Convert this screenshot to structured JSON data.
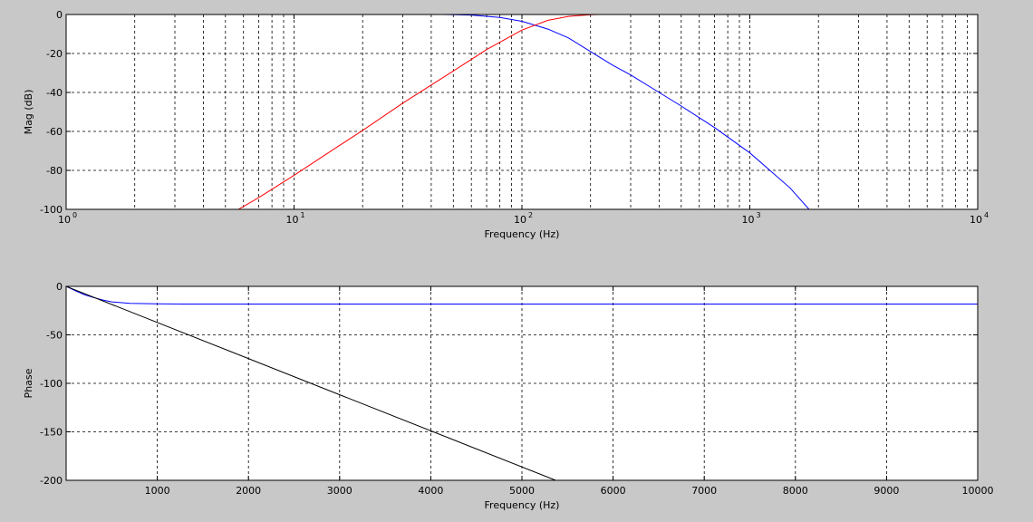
{
  "window": {
    "background": "#c8c8c8"
  },
  "chart_data": [
    {
      "type": "line",
      "xscale": "log",
      "xlim": [
        1,
        10000
      ],
      "ylim": [
        -100,
        0
      ],
      "xlabel": "Frequency (Hz)",
      "ylabel": "Mag (dB)",
      "grid": true,
      "x_ticks": [
        {
          "base": "10",
          "exp": "0",
          "value": 1
        },
        {
          "base": "10",
          "exp": "1",
          "value": 10
        },
        {
          "base": "10",
          "exp": "2",
          "value": 100
        },
        {
          "base": "10",
          "exp": "3",
          "value": 1000
        },
        {
          "base": "10",
          "exp": "4",
          "value": 10000
        }
      ],
      "y_ticks": [
        0,
        -20,
        -40,
        -60,
        -80,
        -100
      ],
      "series": [
        {
          "color": "#0000ff",
          "x": [
            45,
            60,
            80,
            100,
            130,
            160,
            200,
            250,
            300,
            400,
            500,
            700,
            1000,
            1500,
            1820
          ],
          "y": [
            0,
            -0.3,
            -1.5,
            -3.5,
            -7.5,
            -12,
            -19,
            -26,
            -31,
            -40,
            -47,
            -58,
            -71,
            -89,
            -100
          ]
        },
        {
          "color": "#ff0000",
          "x": [
            5.7,
            7,
            10,
            15,
            20,
            30,
            50,
            70,
            100,
            130,
            160,
            200,
            220
          ],
          "y": [
            -100,
            -94,
            -82.5,
            -69,
            -59.5,
            -45.5,
            -29,
            -18,
            -8,
            -3,
            -1,
            -0.1,
            0
          ]
        },
        {
          "color": "#000000",
          "x": [
            1,
            10000
          ],
          "y": [
            0,
            0
          ]
        }
      ]
    },
    {
      "type": "line",
      "xlim": [
        0,
        10000
      ],
      "ylim": [
        -200,
        0
      ],
      "xlabel": "Frequency (Hz)",
      "ylabel": "Phase",
      "grid": true,
      "x_ticks": [
        1000,
        2000,
        3000,
        4000,
        5000,
        6000,
        7000,
        8000,
        9000,
        10000
      ],
      "y_ticks": [
        0,
        -50,
        -100,
        -150,
        -200
      ],
      "series": [
        {
          "color": "#0000ff",
          "x": [
            0,
            100,
            200,
            300,
            400,
            500,
            700,
            1000,
            1300,
            10000
          ],
          "y": [
            0,
            -4.5,
            -8.5,
            -11.5,
            -14,
            -16,
            -17.6,
            -18,
            -18.2,
            -18.2
          ]
        },
        {
          "color": "#000000",
          "x": [
            0,
            5370
          ],
          "y": [
            0,
            -200
          ]
        }
      ]
    }
  ]
}
